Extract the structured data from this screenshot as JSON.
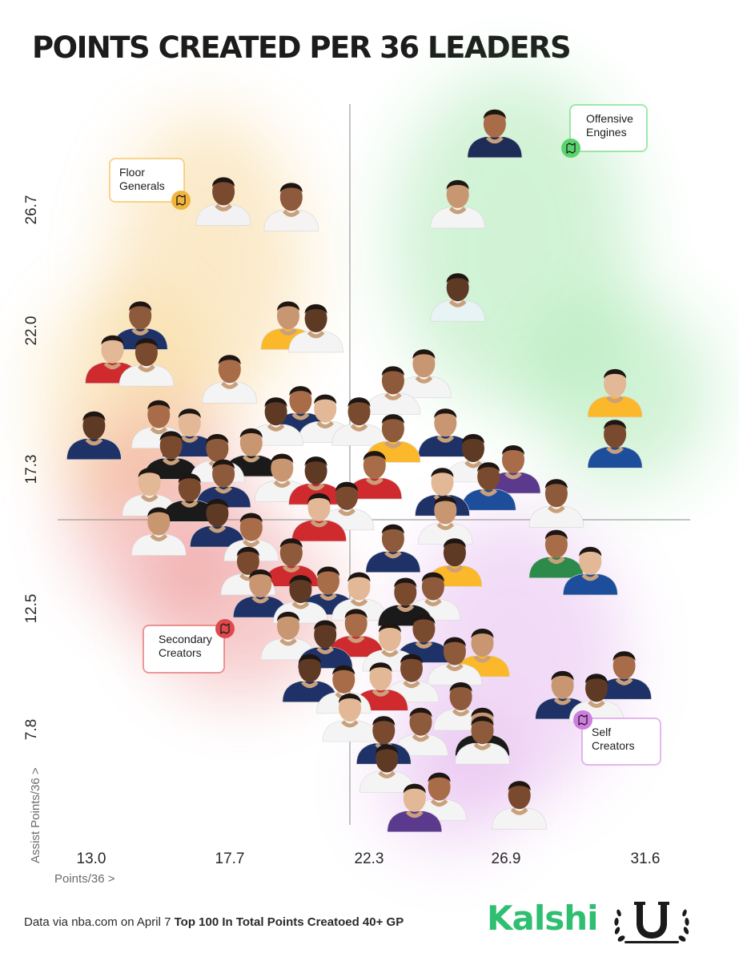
{
  "title": "POINTS CREATED PER 36 LEADERS",
  "footer": {
    "source": "Data via nba.com on April 7 ",
    "note": "Top 100 In Total Points Creatoed 40+ GP"
  },
  "brand": {
    "name": "Kalshi"
  },
  "colors": {
    "floor_generals": "#f1b43c",
    "offensive_engines": "#5bd36c",
    "secondary_creators": "#e0494b",
    "self_creators": "#cf7de0",
    "brand": "#2fbf71"
  },
  "chart_data": {
    "type": "scatter",
    "title": "POINTS CREATED PER 36 LEADERS",
    "xlabel": "Points/36 >",
    "ylabel": "Assist Points/36 >",
    "x_ticks": [
      "13.0",
      "17.7",
      "22.3",
      "26.9",
      "31.6"
    ],
    "y_ticks": [
      "26.7",
      "22.0",
      "17.3",
      "12.5",
      "7.8"
    ],
    "xlim": [
      11.8,
      33.1
    ],
    "ylim": [
      4.2,
      30.6
    ],
    "quadrant_lines": {
      "x": 21.8,
      "y": 15.3
    },
    "quadrants": [
      {
        "name": "Floor Generals",
        "lines": [
          "Floor",
          "Generals"
        ],
        "color": "#f1b43c",
        "position": "top-left"
      },
      {
        "name": "Offensive Engines",
        "lines": [
          "Offensive",
          "Engines"
        ],
        "color": "#5bd36c",
        "position": "top-right"
      },
      {
        "name": "Secondary Creators",
        "lines": [
          "Secondary",
          "Creators"
        ],
        "color": "#e0494b",
        "position": "bottom-left"
      },
      {
        "name": "Self Creators",
        "lines": [
          "Self",
          "Creators"
        ],
        "color": "#cf7de0",
        "position": "bottom-right"
      }
    ],
    "points": [
      {
        "x": 17.7,
        "y": 26.7,
        "jersey": "#f2f2f4"
      },
      {
        "x": 19.9,
        "y": 26.5,
        "jersey": "#f6f3f3"
      },
      {
        "x": 25.3,
        "y": 26.6,
        "jersey": "#f4f4f4"
      },
      {
        "x": 25.3,
        "y": 23.3,
        "jersey": "#e7f3f4"
      },
      {
        "x": 26.5,
        "y": 29.1,
        "jersey": "#1d2d57"
      },
      {
        "x": 14.1,
        "y": 21.1,
        "jersey": "#cf2b2f"
      },
      {
        "x": 15.2,
        "y": 21.0,
        "jersey": "#f4f4f4"
      },
      {
        "x": 15.0,
        "y": 22.3,
        "jersey": "#1f3268"
      },
      {
        "x": 19.8,
        "y": 22.3,
        "jersey": "#fbb82b"
      },
      {
        "x": 20.7,
        "y": 22.2,
        "jersey": "#f4f4f4"
      },
      {
        "x": 17.9,
        "y": 20.4,
        "jersey": "#f4f4f4"
      },
      {
        "x": 30.4,
        "y": 19.9,
        "jersey": "#fbb82b"
      },
      {
        "x": 30.4,
        "y": 18.1,
        "jersey": "#1d4e9c"
      },
      {
        "x": 23.2,
        "y": 20.0,
        "jersey": "#f4f4f4"
      },
      {
        "x": 24.2,
        "y": 20.6,
        "jersey": "#f4f4f4"
      },
      {
        "x": 13.5,
        "y": 18.4,
        "jersey": "#1f3268"
      },
      {
        "x": 15.6,
        "y": 18.8,
        "jersey": "#f4f4f4"
      },
      {
        "x": 16.6,
        "y": 18.5,
        "jersey": "#1f3268"
      },
      {
        "x": 16.0,
        "y": 17.7,
        "jersey": "#1a1a1a"
      },
      {
        "x": 17.5,
        "y": 17.6,
        "jersey": "#f4f4f4"
      },
      {
        "x": 18.6,
        "y": 17.8,
        "jersey": "#1a1a1a"
      },
      {
        "x": 19.4,
        "y": 18.9,
        "jersey": "#f4f4f4"
      },
      {
        "x": 20.2,
        "y": 19.3,
        "jersey": "#1f3268"
      },
      {
        "x": 21.0,
        "y": 19.0,
        "jersey": "#f4f4f4"
      },
      {
        "x": 22.1,
        "y": 18.9,
        "jersey": "#f4f4f4"
      },
      {
        "x": 23.2,
        "y": 18.3,
        "jersey": "#fbb82b"
      },
      {
        "x": 24.9,
        "y": 18.5,
        "jersey": "#1f3268"
      },
      {
        "x": 25.8,
        "y": 17.6,
        "jersey": "#f4f4f4"
      },
      {
        "x": 27.1,
        "y": 17.2,
        "jersey": "#5b3a8e"
      },
      {
        "x": 15.3,
        "y": 16.4,
        "jersey": "#f4f4f4"
      },
      {
        "x": 16.6,
        "y": 16.2,
        "jersey": "#1a1a1a"
      },
      {
        "x": 17.7,
        "y": 16.7,
        "jersey": "#1f3268"
      },
      {
        "x": 19.6,
        "y": 16.9,
        "jersey": "#f4f4f4"
      },
      {
        "x": 20.7,
        "y": 16.8,
        "jersey": "#cf2b2f"
      },
      {
        "x": 22.6,
        "y": 17.0,
        "jersey": "#cf2b2f"
      },
      {
        "x": 24.8,
        "y": 16.4,
        "jersey": "#1f3268"
      },
      {
        "x": 26.3,
        "y": 16.6,
        "jersey": "#1d4e9c"
      },
      {
        "x": 28.5,
        "y": 16.0,
        "jersey": "#f4f4f4"
      },
      {
        "x": 15.6,
        "y": 15.0,
        "jersey": "#f4f4f4"
      },
      {
        "x": 17.5,
        "y": 15.3,
        "jersey": "#1f3268"
      },
      {
        "x": 18.6,
        "y": 14.8,
        "jersey": "#f4f4f4"
      },
      {
        "x": 20.8,
        "y": 15.5,
        "jersey": "#cf2b2f"
      },
      {
        "x": 21.7,
        "y": 15.9,
        "jersey": "#f4f4f4"
      },
      {
        "x": 23.2,
        "y": 14.4,
        "jersey": "#1f3268"
      },
      {
        "x": 24.9,
        "y": 15.4,
        "jersey": "#f4f4f4"
      },
      {
        "x": 25.2,
        "y": 13.9,
        "jersey": "#fbb82b"
      },
      {
        "x": 28.5,
        "y": 14.2,
        "jersey": "#2c8a4a"
      },
      {
        "x": 29.6,
        "y": 13.6,
        "jersey": "#1d4e9c"
      },
      {
        "x": 18.5,
        "y": 13.6,
        "jersey": "#f4f4f4"
      },
      {
        "x": 19.9,
        "y": 13.9,
        "jersey": "#cf2b2f"
      },
      {
        "x": 18.9,
        "y": 12.8,
        "jersey": "#1f3268"
      },
      {
        "x": 20.2,
        "y": 12.6,
        "jersey": "#f4f4f4"
      },
      {
        "x": 21.1,
        "y": 12.9,
        "jersey": "#1f3268"
      },
      {
        "x": 22.1,
        "y": 12.7,
        "jersey": "#f4f4f4"
      },
      {
        "x": 23.6,
        "y": 12.5,
        "jersey": "#1a1a1a"
      },
      {
        "x": 24.5,
        "y": 12.7,
        "jersey": "#f4f4f4"
      },
      {
        "x": 19.8,
        "y": 11.3,
        "jersey": "#f4f4f4"
      },
      {
        "x": 21.0,
        "y": 11.0,
        "jersey": "#1f3268"
      },
      {
        "x": 22.0,
        "y": 11.4,
        "jersey": "#cf2b2f"
      },
      {
        "x": 23.1,
        "y": 10.9,
        "jersey": "#f4f4f4"
      },
      {
        "x": 24.2,
        "y": 11.2,
        "jersey": "#1f3268"
      },
      {
        "x": 25.2,
        "y": 10.4,
        "jersey": "#f4f4f4"
      },
      {
        "x": 26.1,
        "y": 10.7,
        "jersey": "#fbb82b"
      },
      {
        "x": 20.5,
        "y": 9.8,
        "jersey": "#1f3268"
      },
      {
        "x": 21.6,
        "y": 9.4,
        "jersey": "#f4f4f4"
      },
      {
        "x": 22.8,
        "y": 9.5,
        "jersey": "#cf2b2f"
      },
      {
        "x": 23.8,
        "y": 9.8,
        "jersey": "#f4f4f4"
      },
      {
        "x": 25.4,
        "y": 8.8,
        "jersey": "#f4f4f4"
      },
      {
        "x": 28.7,
        "y": 9.2,
        "jersey": "#1f3268"
      },
      {
        "x": 29.8,
        "y": 9.1,
        "jersey": "#f4f4f4"
      },
      {
        "x": 30.7,
        "y": 9.9,
        "jersey": "#1f3268"
      },
      {
        "x": 21.8,
        "y": 8.4,
        "jersey": "#f4f4f4"
      },
      {
        "x": 22.9,
        "y": 7.6,
        "jersey": "#1f3268"
      },
      {
        "x": 24.1,
        "y": 7.9,
        "jersey": "#f4f4f4"
      },
      {
        "x": 26.1,
        "y": 7.9,
        "jersey": "#1a1a1a"
      },
      {
        "x": 23.0,
        "y": 6.6,
        "jersey": "#f4f4f4"
      },
      {
        "x": 24.7,
        "y": 5.6,
        "jersey": "#f4f4f4"
      },
      {
        "x": 23.9,
        "y": 5.2,
        "jersey": "#5b3a8e"
      },
      {
        "x": 27.3,
        "y": 5.3,
        "jersey": "#f4f4f4"
      },
      {
        "x": 26.1,
        "y": 7.6,
        "jersey": "#f4f4f4"
      }
    ]
  }
}
